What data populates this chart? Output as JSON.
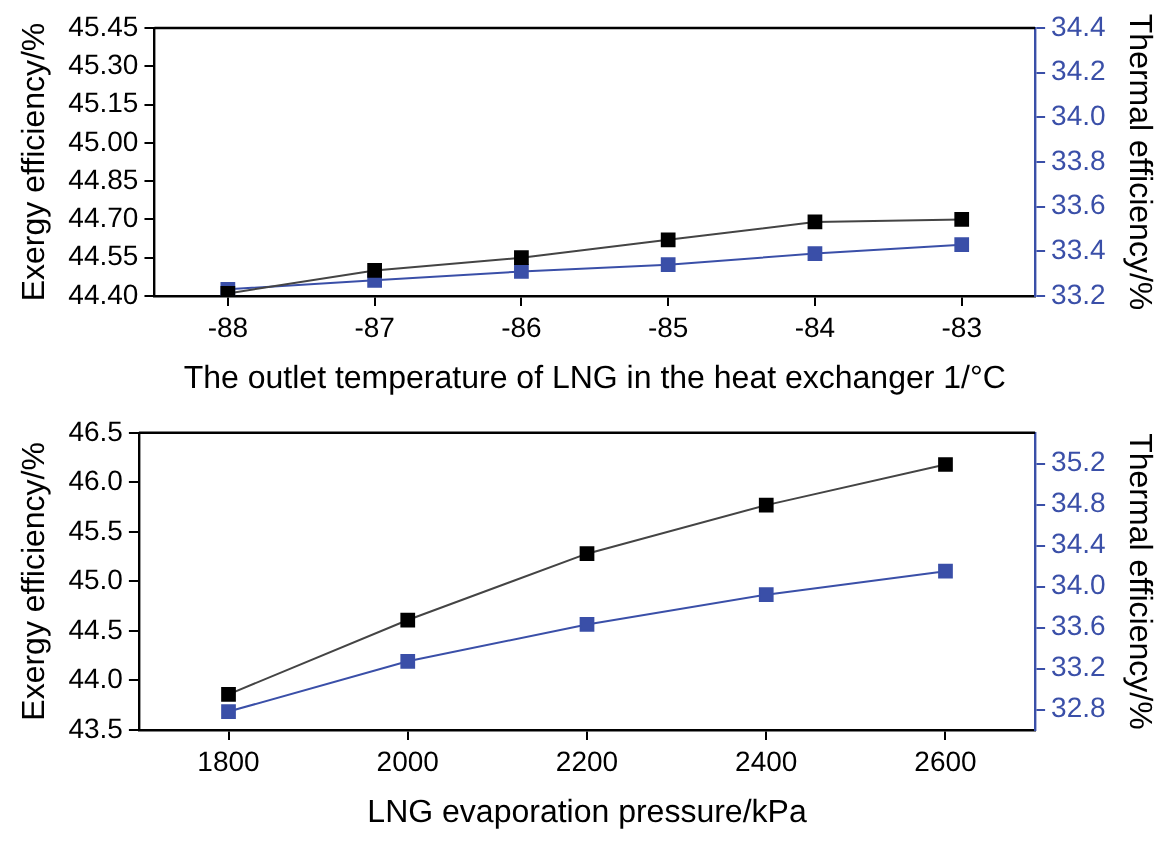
{
  "chart_data": [
    {
      "type": "line",
      "xlabel": "The outlet temperature of LNG in the heat exchanger 1/°C",
      "ylabel": "Exergy efficiency/%",
      "y2label": "Thermal efficiency/%",
      "x": [
        -88,
        -87,
        -86,
        -85,
        -84,
        -83
      ],
      "xlim": [
        -88.5,
        -82.5
      ],
      "xticks": [
        -88,
        -87,
        -86,
        -85,
        -84,
        -83
      ],
      "ylim": [
        44.4,
        45.45
      ],
      "yticks": [
        {
          "value": 44.4,
          "label": "44.40"
        },
        44.55,
        {
          "value": 44.7,
          "label": "44.70"
        },
        44.85,
        {
          "value": 45,
          "label": "45.00"
        },
        {
          "value": 45.15,
          "label": "45.15"
        },
        {
          "value": 45.3,
          "label": "45.30"
        },
        45.45
      ],
      "y2lim": [
        33.2,
        34.4
      ],
      "y2ticks": [
        33.2,
        33.4,
        33.6,
        33.8,
        {
          "value": 34,
          "label": "34.0"
        },
        34.2,
        34.4
      ],
      "grid": false,
      "legend": false,
      "marker": "square",
      "line_style": "solid",
      "series": [
        {
          "color": "#000000",
          "values": [
            44.41,
            44.5,
            44.55,
            44.62,
            44.69,
            44.7
          ]
        },
        {
          "color": "#3a4fa8",
          "axis": "y2",
          "values": [
            33.23,
            33.27,
            33.31,
            33.34,
            33.39,
            33.43
          ]
        }
      ]
    },
    {
      "type": "line",
      "xlabel": "LNG evaporation pressure/kPa",
      "ylabel": "Exergy efficiency/%",
      "y2label": "Thermal efficiency/%",
      "x": [
        1800,
        2000,
        2200,
        2400,
        2600
      ],
      "xlim": [
        1700,
        2700
      ],
      "xticks": [
        1800,
        2000,
        2200,
        2400,
        2600
      ],
      "ylim": [
        43.5,
        46.5
      ],
      "yticks": [
        43.5,
        {
          "value": 44,
          "label": "44.0"
        },
        44.5,
        {
          "value": 45,
          "label": "45.0"
        },
        45.5,
        {
          "value": 46,
          "label": "46.0"
        },
        46.5
      ],
      "y2lim": [
        32.6,
        35.5
      ],
      "y2ticks": [
        32.8,
        33.2,
        33.6,
        {
          "value": 34,
          "label": "34.0"
        },
        34.4,
        34.8,
        35.2
      ],
      "grid": false,
      "legend": false,
      "marker": "square",
      "line_style": "solid",
      "series": [
        {
          "color": "#000000",
          "values": [
            43.86,
            44.61,
            45.28,
            45.77,
            46.18
          ]
        },
        {
          "color": "#3a4fa8",
          "axis": "y2",
          "values": [
            32.78,
            33.27,
            33.63,
            33.92,
            34.15
          ]
        }
      ]
    }
  ]
}
